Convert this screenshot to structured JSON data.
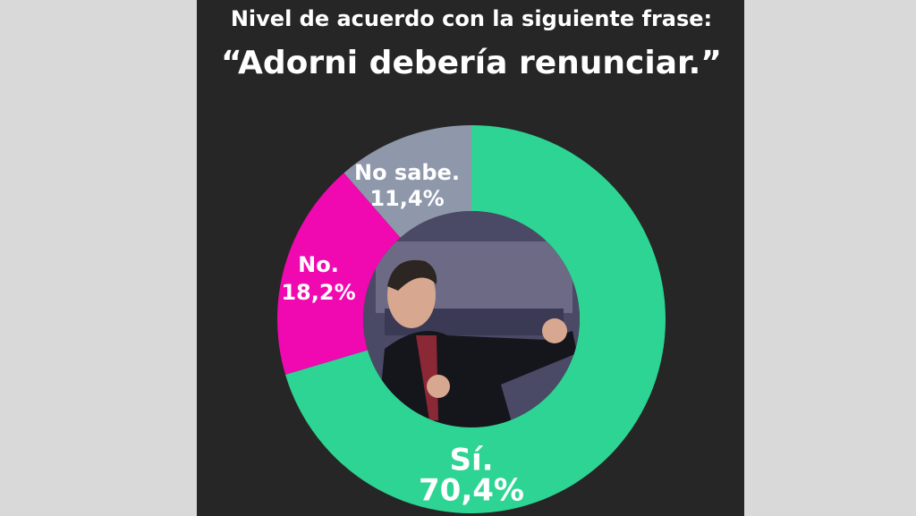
{
  "chart_data": {
    "type": "donut",
    "title": "Nivel de acuerdo con la siguiente frase:",
    "subtitle": "“Adorni debería renunciar.”",
    "categories": [
      "Sí.",
      "No.",
      "No sabe."
    ],
    "values": [
      70.4,
      18.2,
      11.4
    ],
    "value_labels": [
      "70,4%",
      "18,2%",
      "11,4%"
    ],
    "colors": [
      "#2ed493",
      "#f008b0",
      "#8e98aa"
    ]
  }
}
